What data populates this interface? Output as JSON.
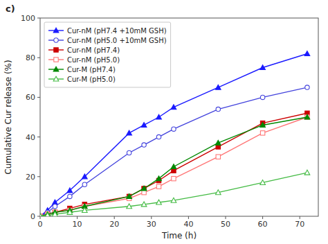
{
  "chart_data": {
    "type": "line",
    "annotation": "c)",
    "xlabel": "Time (h)",
    "ylabel": "Cumulative Cur release (%)",
    "xlim": [
      0,
      75
    ],
    "ylim": [
      0,
      100
    ],
    "xticks": [
      0,
      10,
      20,
      30,
      40,
      50,
      60,
      70
    ],
    "yticks": [
      0,
      20,
      40,
      60,
      80,
      100
    ],
    "grid": false,
    "legend": "upper left",
    "x": [
      0,
      2,
      4,
      8,
      12,
      24,
      28,
      32,
      36,
      48,
      60,
      72
    ],
    "series": [
      {
        "name": "Cur-nM (pH7.4 +10mM GSH)",
        "color": "#1a1aff",
        "marker": "triangle",
        "values": [
          0,
          3,
          7,
          13,
          20,
          42,
          46,
          50,
          55,
          65,
          75,
          82
        ]
      },
      {
        "name": "Cur-nM (pH5.0 +10mM GSH)",
        "color": "#4444dd",
        "marker": "circle-open",
        "values": [
          0,
          2,
          5,
          10,
          16,
          32,
          36,
          40,
          44,
          54,
          60,
          65
        ]
      },
      {
        "name": "Cur-nM (pH7.4)",
        "color": "#cc0000",
        "marker": "square",
        "values": [
          0,
          1,
          2,
          4,
          6,
          10,
          14,
          18,
          23,
          35,
          47,
          52
        ]
      },
      {
        "name": "Cur-nM (pH5.0)",
        "color": "#ff7777",
        "marker": "square-open",
        "values": [
          0,
          1,
          2,
          3,
          5,
          9,
          12,
          15,
          19,
          30,
          42,
          50
        ]
      },
      {
        "name": "Cur-M  (pH7.4)",
        "color": "#008800",
        "marker": "triangle",
        "values": [
          0,
          1,
          2,
          3,
          5,
          10,
          14,
          19,
          25,
          37,
          46,
          50
        ]
      },
      {
        "name": "Cur-M  (pH5.0)",
        "color": "#44bb44",
        "marker": "triangle-open",
        "values": [
          0,
          0.5,
          1,
          2,
          3,
          5,
          6,
          7,
          8,
          12,
          17,
          22
        ]
      }
    ]
  }
}
